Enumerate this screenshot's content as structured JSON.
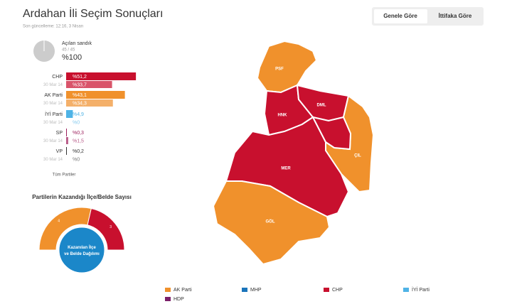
{
  "header": {
    "title": "Ardahan İli Seçim Sonuçları",
    "updated": "Son güncelleme: 12:16, 3 Nisan",
    "tabs": [
      "Genele Göre",
      "İttifaka Göre"
    ]
  },
  "ballot_boxes": {
    "label": "Açılan sandık",
    "count": "45 / 45",
    "percent": "%100"
  },
  "parties": {
    "scale_max": 60,
    "prev_date": "30 Mar 14",
    "rows": [
      {
        "name": "CHP",
        "color": "#c8102e",
        "prev_color": "#d9546a",
        "value": 51.2,
        "label": "%51,2",
        "prev_value": 33.7,
        "prev_label": "%33,7"
      },
      {
        "name": "AK Parti",
        "color": "#f0912c",
        "prev_color": "#f4b06a",
        "value": 43.1,
        "label": "%43,1",
        "prev_value": 34.3,
        "prev_label": "%34,3"
      },
      {
        "name": "İYİ Parti",
        "color": "#4fb3e6",
        "prev_color": "#87cbee",
        "value": 4.9,
        "label": "%4,9",
        "prev_value": 0,
        "prev_label": "%0"
      },
      {
        "name": "SP",
        "color": "#9c1f5c",
        "prev_color": "#b85a88",
        "value": 0.3,
        "label": "%0,3",
        "prev_value": 1.5,
        "prev_label": "%1,5"
      },
      {
        "name": "VP",
        "color": "#333333",
        "prev_color": "#777777",
        "value": 0.2,
        "label": "%0,2",
        "prev_value": 0,
        "prev_label": "%0"
      }
    ],
    "all_link": "Tüm Partiler"
  },
  "gauge": {
    "title": "Partilerin Kazandığı İlçe/Belde Sayısı",
    "center": "Kazanılan İlçe ve Belde Dağılımı",
    "segments": [
      {
        "color": "#f0912c",
        "value": 4,
        "label": "4"
      },
      {
        "color": "#c8102e",
        "value": 3,
        "label": "3"
      }
    ]
  },
  "map": {
    "districts": [
      {
        "label": "PSF",
        "color": "#f0912c"
      },
      {
        "label": "HNK",
        "color": "#c8102e"
      },
      {
        "label": "DML",
        "color": "#c8102e"
      },
      {
        "label": "ÇIL",
        "color": "#f0912c"
      },
      {
        "label": "MER",
        "color": "#c8102e"
      },
      {
        "label": "GÖL",
        "color": "#f0912c"
      }
    ]
  },
  "legend": [
    {
      "name": "AK Parti",
      "color": "#f0912c"
    },
    {
      "name": "MHP",
      "color": "#1b75bb"
    },
    {
      "name": "CHP",
      "color": "#c8102e"
    },
    {
      "name": "İYİ Parti",
      "color": "#4fb3e6"
    },
    {
      "name": "HDP",
      "color": "#7b1f6a"
    }
  ]
}
